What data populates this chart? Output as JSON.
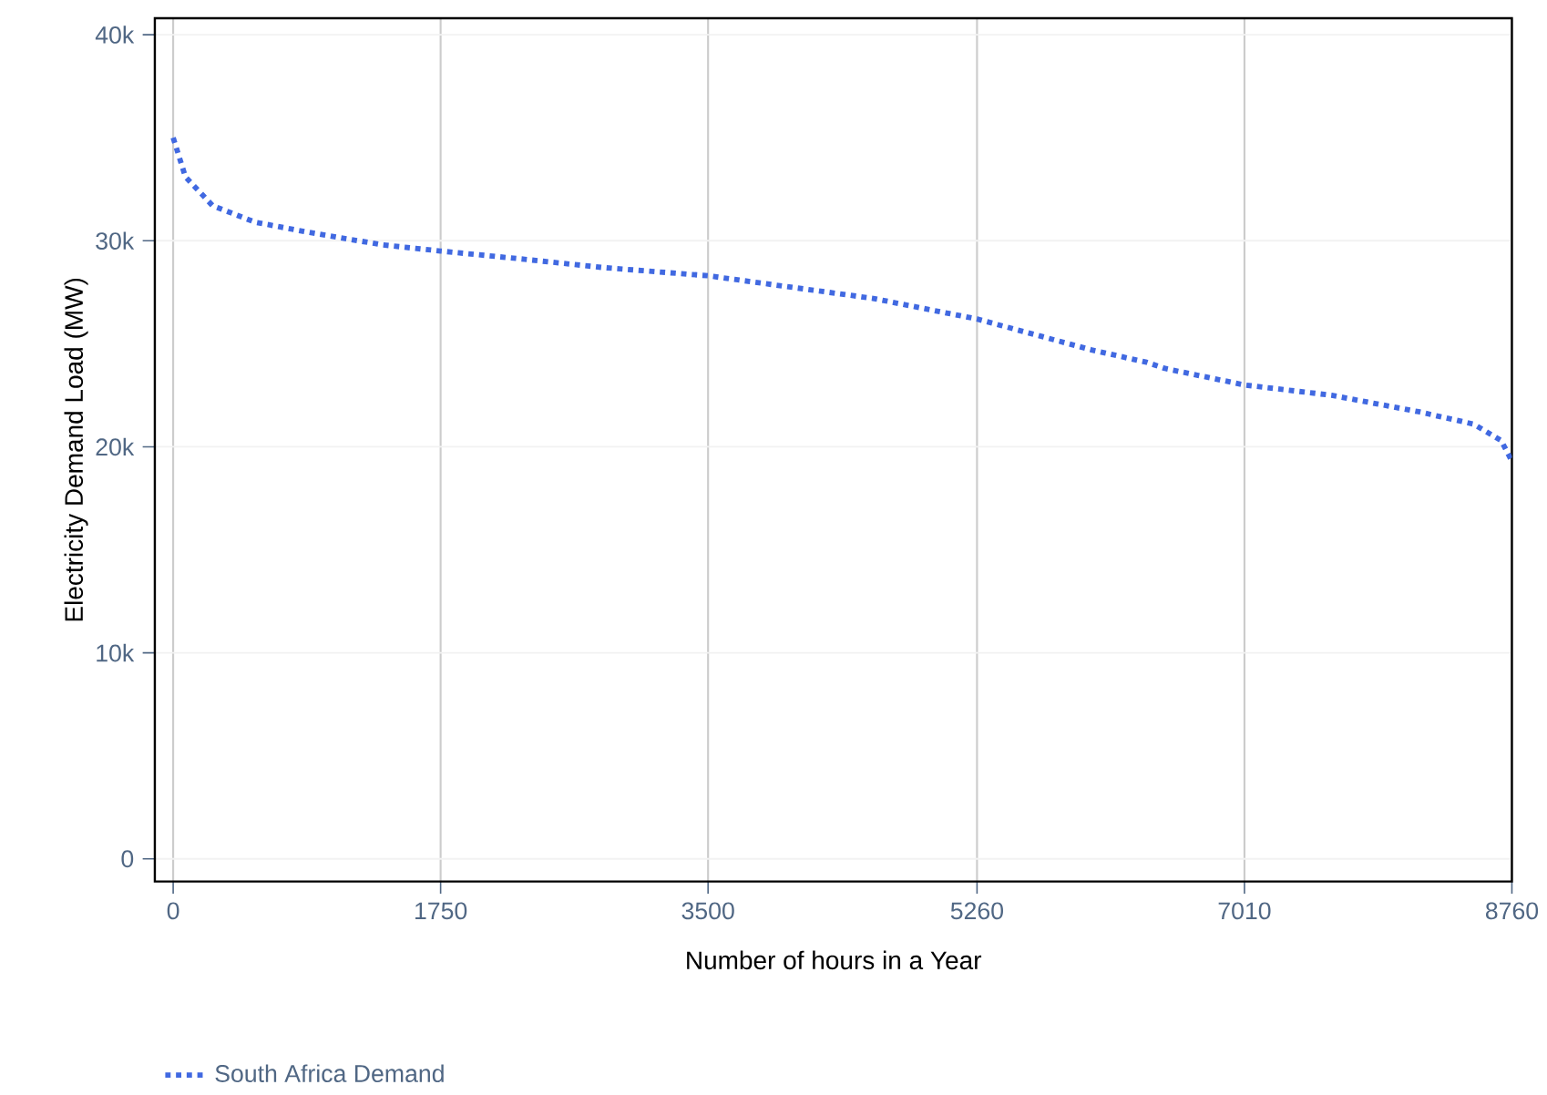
{
  "chart_data": {
    "type": "line",
    "xlabel": "Number of hours in a Year",
    "ylabel": "Electricity Demand Load (MW)",
    "xlim": [
      -120,
      8760
    ],
    "ylim": [
      -1100,
      40800
    ],
    "xticks": [
      0,
      1750,
      3500,
      5260,
      7010,
      8760
    ],
    "yticks": [
      {
        "value": 0,
        "label": "0"
      },
      {
        "value": 10000,
        "label": "10k"
      },
      {
        "value": 20000,
        "label": "20k"
      },
      {
        "value": 30000,
        "label": "30k"
      },
      {
        "value": 40000,
        "label": "40k"
      }
    ],
    "grid": true,
    "legend": "bottom left",
    "line_style": "dotted",
    "marker": "none",
    "series": [
      {
        "name": "South Africa Demand",
        "color": "#4169e1",
        "x": [
          0,
          80,
          258,
          536,
          893,
          1370,
          1750,
          2300,
          2810,
          3500,
          4580,
          5260,
          6010,
          6370,
          6490,
          7010,
          7580,
          8150,
          8510,
          8690,
          8760
        ],
        "values": [
          35000,
          33100,
          31700,
          30900,
          30400,
          29800,
          29500,
          29100,
          28700,
          28300,
          27200,
          26200,
          24700,
          24100,
          23800,
          23000,
          22500,
          21700,
          21100,
          20300,
          19300
        ]
      }
    ]
  }
}
